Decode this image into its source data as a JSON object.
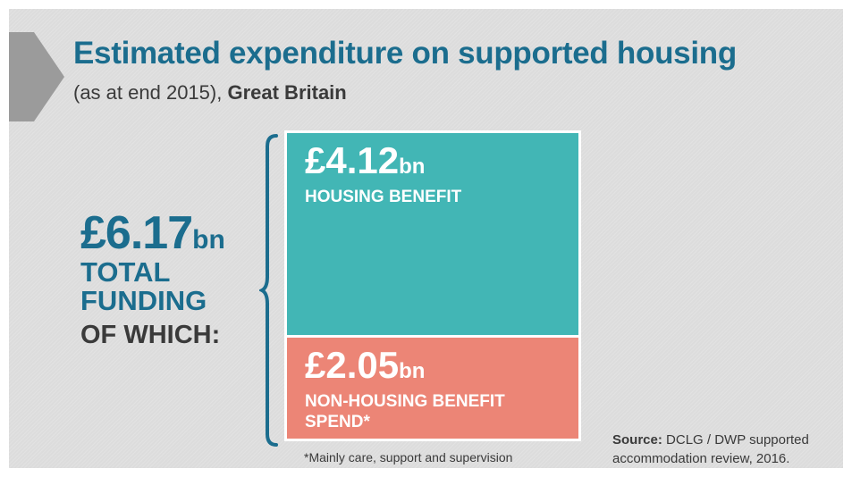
{
  "title": "Estimated expenditure on supported housing",
  "subtitle": {
    "prefix": "(as at end 2015),",
    "region": "Great Britain"
  },
  "colors": {
    "background": "#dcdcdc",
    "title_blue": "#1b6d8e",
    "housing_teal": "#42b6b5",
    "nonhousing_salmon": "#ec8576",
    "dark_text": "#3a3a3a"
  },
  "icons": {
    "header": "chevron-right-icon",
    "grouping": "curly-brace-icon"
  },
  "chart_data": {
    "type": "bar",
    "layout": "stacked-single-column",
    "total": {
      "value": 6.17,
      "amount": "£6.17",
      "unit": "bn",
      "label": "TOTAL FUNDING",
      "sublabel": "OF WHICH:"
    },
    "segments": [
      {
        "name": "HOUSING BENEFIT",
        "value": 4.12,
        "amount": "£4.12",
        "unit": "bn",
        "color": "#42b6b5"
      },
      {
        "name": "NON-HOUSING BENEFIT SPEND*",
        "value": 2.05,
        "amount": "£2.05",
        "unit": "bn",
        "color": "#ec8576"
      }
    ],
    "footnote": "*Mainly care, support and supervision",
    "source": {
      "label": "Source:",
      "text": "DCLG / DWP supported accommodation review, 2016."
    }
  }
}
